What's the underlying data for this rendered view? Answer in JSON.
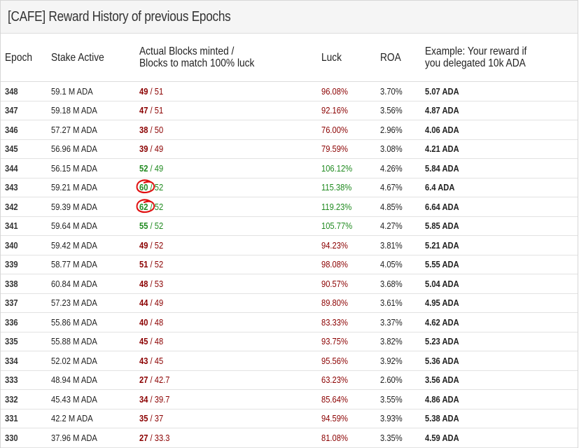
{
  "panel": {
    "title": "[CAFE] Reward History of previous Epochs"
  },
  "columns": {
    "epoch": "Epoch",
    "stake": "Stake Active",
    "blocks_line1": "Actual Blocks minted /",
    "blocks_line2": "Blocks to match 100% luck",
    "luck": "Luck",
    "roa": "ROA",
    "reward_line1": "Example: Your reward if",
    "reward_line2": "you delegated 10k ADA"
  },
  "colors": {
    "below_luck": "#8b0000",
    "above_luck": "#1f8a1f",
    "annotation_circle": "#e01010"
  },
  "rows": [
    {
      "epoch": "348",
      "stake": "59.1 M ADA",
      "minted": "49",
      "expected": "51",
      "luck": "96.08%",
      "roa": "3.70%",
      "reward": "5.07 ADA",
      "status": "red",
      "circled": false
    },
    {
      "epoch": "347",
      "stake": "59.18 M ADA",
      "minted": "47",
      "expected": "51",
      "luck": "92.16%",
      "roa": "3.56%",
      "reward": "4.87 ADA",
      "status": "red",
      "circled": false
    },
    {
      "epoch": "346",
      "stake": "57.27 M ADA",
      "minted": "38",
      "expected": "50",
      "luck": "76.00%",
      "roa": "2.96%",
      "reward": "4.06 ADA",
      "status": "red",
      "circled": false
    },
    {
      "epoch": "345",
      "stake": "56.96 M ADA",
      "minted": "39",
      "expected": "49",
      "luck": "79.59%",
      "roa": "3.08%",
      "reward": "4.21 ADA",
      "status": "red",
      "circled": false
    },
    {
      "epoch": "344",
      "stake": "56.15 M ADA",
      "minted": "52",
      "expected": "49",
      "luck": "106.12%",
      "roa": "4.26%",
      "reward": "5.84 ADA",
      "status": "green",
      "circled": false
    },
    {
      "epoch": "343",
      "stake": "59.21 M ADA",
      "minted": "60",
      "expected": "52",
      "luck": "115.38%",
      "roa": "4.67%",
      "reward": "6.4 ADA",
      "status": "green",
      "circled": true
    },
    {
      "epoch": "342",
      "stake": "59.39 M ADA",
      "minted": "62",
      "expected": "52",
      "luck": "119.23%",
      "roa": "4.85%",
      "reward": "6.64 ADA",
      "status": "green",
      "circled": true
    },
    {
      "epoch": "341",
      "stake": "59.64 M ADA",
      "minted": "55",
      "expected": "52",
      "luck": "105.77%",
      "roa": "4.27%",
      "reward": "5.85 ADA",
      "status": "green",
      "circled": false
    },
    {
      "epoch": "340",
      "stake": "59.42 M ADA",
      "minted": "49",
      "expected": "52",
      "luck": "94.23%",
      "roa": "3.81%",
      "reward": "5.21 ADA",
      "status": "red",
      "circled": false
    },
    {
      "epoch": "339",
      "stake": "58.77 M ADA",
      "minted": "51",
      "expected": "52",
      "luck": "98.08%",
      "roa": "4.05%",
      "reward": "5.55 ADA",
      "status": "red",
      "circled": false
    },
    {
      "epoch": "338",
      "stake": "60.84 M ADA",
      "minted": "48",
      "expected": "53",
      "luck": "90.57%",
      "roa": "3.68%",
      "reward": "5.04 ADA",
      "status": "red",
      "circled": false
    },
    {
      "epoch": "337",
      "stake": "57.23 M ADA",
      "minted": "44",
      "expected": "49",
      "luck": "89.80%",
      "roa": "3.61%",
      "reward": "4.95 ADA",
      "status": "red",
      "circled": false
    },
    {
      "epoch": "336",
      "stake": "55.86 M ADA",
      "minted": "40",
      "expected": "48",
      "luck": "83.33%",
      "roa": "3.37%",
      "reward": "4.62 ADA",
      "status": "red",
      "circled": false
    },
    {
      "epoch": "335",
      "stake": "55.88 M ADA",
      "minted": "45",
      "expected": "48",
      "luck": "93.75%",
      "roa": "3.82%",
      "reward": "5.23 ADA",
      "status": "red",
      "circled": false
    },
    {
      "epoch": "334",
      "stake": "52.02 M ADA",
      "minted": "43",
      "expected": "45",
      "luck": "95.56%",
      "roa": "3.92%",
      "reward": "5.36 ADA",
      "status": "red",
      "circled": false
    },
    {
      "epoch": "333",
      "stake": "48.94 M ADA",
      "minted": "27",
      "expected": "42.7",
      "luck": "63.23%",
      "roa": "2.60%",
      "reward": "3.56 ADA",
      "status": "red",
      "circled": false
    },
    {
      "epoch": "332",
      "stake": "45.43 M ADA",
      "minted": "34",
      "expected": "39.7",
      "luck": "85.64%",
      "roa": "3.55%",
      "reward": "4.86 ADA",
      "status": "red",
      "circled": false
    },
    {
      "epoch": "331",
      "stake": "42.2 M ADA",
      "minted": "35",
      "expected": "37",
      "luck": "94.59%",
      "roa": "3.93%",
      "reward": "5.38 ADA",
      "status": "red",
      "circled": false
    },
    {
      "epoch": "330",
      "stake": "37.96 M ADA",
      "minted": "27",
      "expected": "33.3",
      "luck": "81.08%",
      "roa": "3.35%",
      "reward": "4.59 ADA",
      "status": "red",
      "circled": false
    }
  ]
}
